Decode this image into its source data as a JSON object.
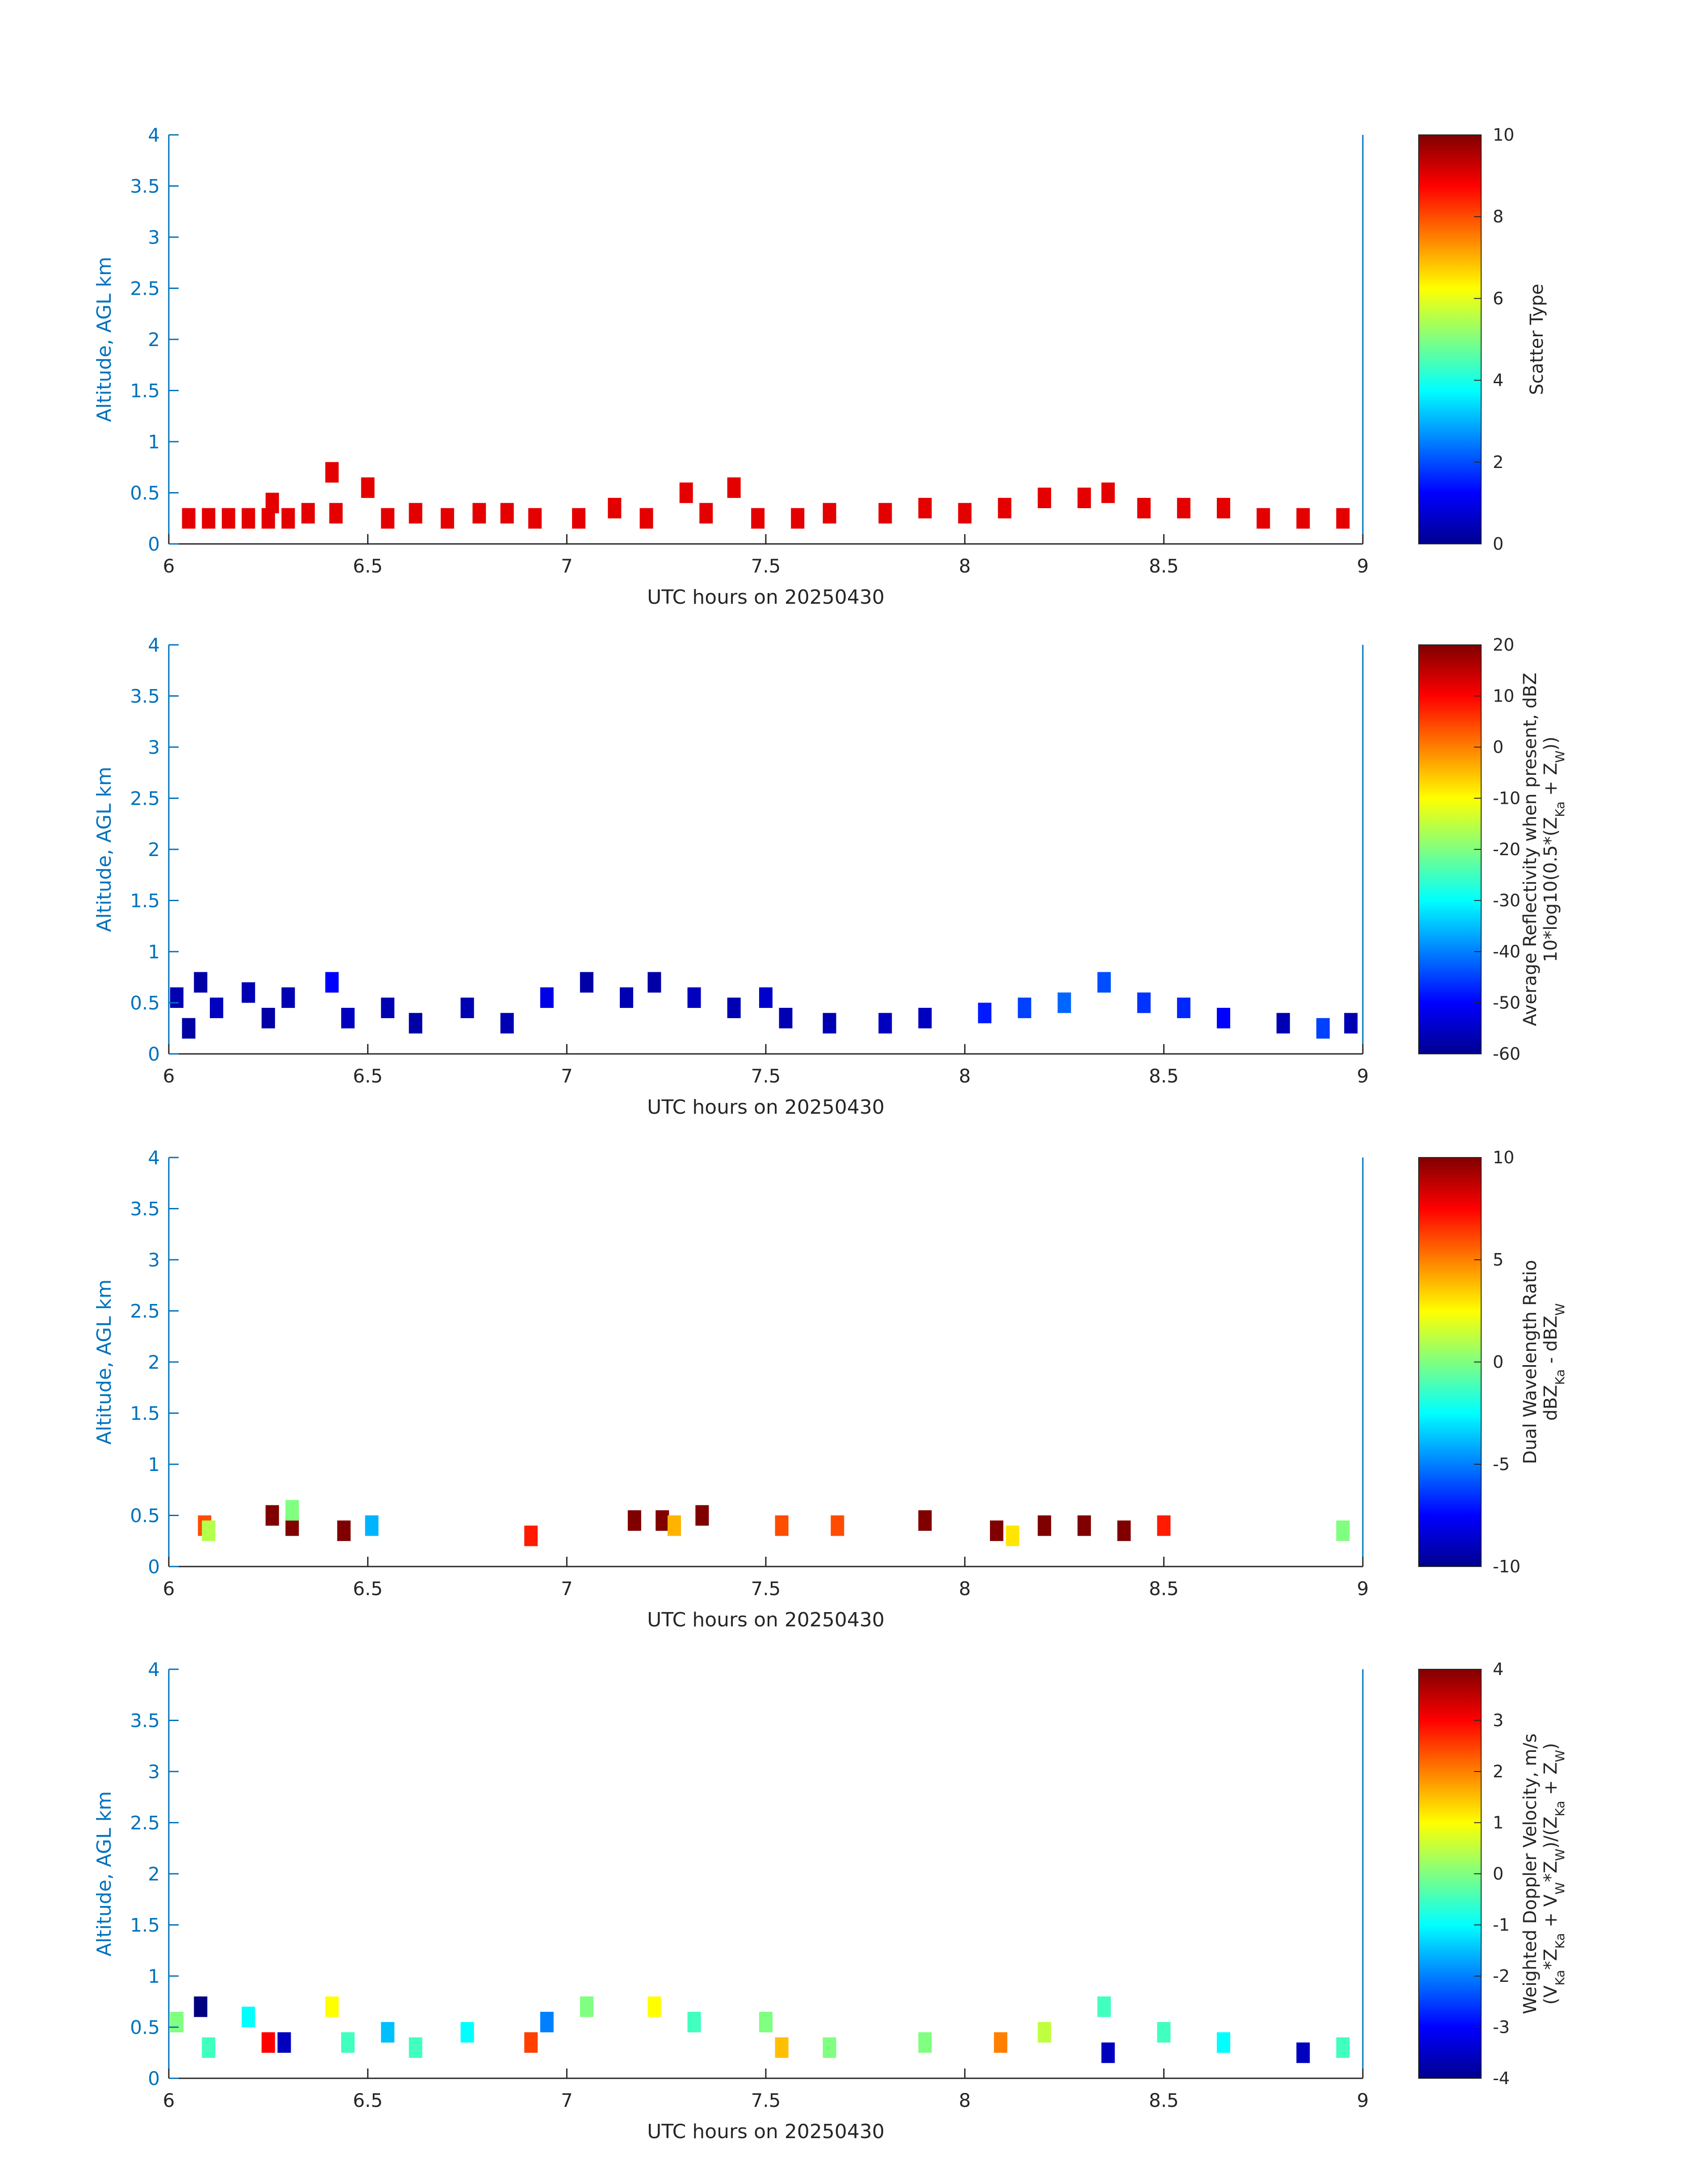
{
  "chart_data": [
    {
      "type": "heatmap",
      "xlabel": "UTC hours on 20250430",
      "ylabel": "Altitude, AGL km",
      "xlim": [
        6,
        9
      ],
      "ylim": [
        0,
        4
      ],
      "xticks": [
        "6",
        "6.5",
        "7",
        "7.5",
        "8",
        "8.5",
        "9"
      ],
      "yticks": [
        "0",
        "0.5",
        "1",
        "1.5",
        "2",
        "2.5",
        "3",
        "3.5",
        "4"
      ],
      "colorbar": {
        "lines": [
          "Scatter Type"
        ],
        "clim": [
          0,
          10
        ],
        "ticks": [
          "0",
          "2",
          "4",
          "6",
          "8",
          "10"
        ]
      },
      "cells": [
        {
          "t": 6.05,
          "h": 0.25,
          "v": 9
        },
        {
          "t": 6.1,
          "h": 0.25,
          "v": 9
        },
        {
          "t": 6.15,
          "h": 0.25,
          "v": 9
        },
        {
          "t": 6.2,
          "h": 0.25,
          "v": 9
        },
        {
          "t": 6.25,
          "h": 0.25,
          "v": 9
        },
        {
          "t": 6.26,
          "h": 0.4,
          "v": 9
        },
        {
          "t": 6.3,
          "h": 0.25,
          "v": 9
        },
        {
          "t": 6.35,
          "h": 0.3,
          "v": 9
        },
        {
          "t": 6.41,
          "h": 0.7,
          "v": 9
        },
        {
          "t": 6.42,
          "h": 0.3,
          "v": 9
        },
        {
          "t": 6.5,
          "h": 0.55,
          "v": 9
        },
        {
          "t": 6.55,
          "h": 0.25,
          "v": 9
        },
        {
          "t": 6.62,
          "h": 0.3,
          "v": 9
        },
        {
          "t": 6.7,
          "h": 0.25,
          "v": 9
        },
        {
          "t": 6.78,
          "h": 0.3,
          "v": 9
        },
        {
          "t": 6.85,
          "h": 0.3,
          "v": 9
        },
        {
          "t": 6.92,
          "h": 0.25,
          "v": 9
        },
        {
          "t": 7.03,
          "h": 0.25,
          "v": 9
        },
        {
          "t": 7.12,
          "h": 0.35,
          "v": 9
        },
        {
          "t": 7.2,
          "h": 0.25,
          "v": 9
        },
        {
          "t": 7.3,
          "h": 0.5,
          "v": 9
        },
        {
          "t": 7.35,
          "h": 0.3,
          "v": 9
        },
        {
          "t": 7.42,
          "h": 0.55,
          "v": 9
        },
        {
          "t": 7.48,
          "h": 0.25,
          "v": 9
        },
        {
          "t": 7.58,
          "h": 0.25,
          "v": 9
        },
        {
          "t": 7.66,
          "h": 0.3,
          "v": 9
        },
        {
          "t": 7.8,
          "h": 0.3,
          "v": 9
        },
        {
          "t": 7.9,
          "h": 0.35,
          "v": 9
        },
        {
          "t": 8.0,
          "h": 0.3,
          "v": 9
        },
        {
          "t": 8.1,
          "h": 0.35,
          "v": 9
        },
        {
          "t": 8.2,
          "h": 0.45,
          "v": 9
        },
        {
          "t": 8.3,
          "h": 0.45,
          "v": 9
        },
        {
          "t": 8.36,
          "h": 0.5,
          "v": 9
        },
        {
          "t": 8.45,
          "h": 0.35,
          "v": 9
        },
        {
          "t": 8.55,
          "h": 0.35,
          "v": 9
        },
        {
          "t": 8.65,
          "h": 0.35,
          "v": 9
        },
        {
          "t": 8.75,
          "h": 0.25,
          "v": 9
        },
        {
          "t": 8.85,
          "h": 0.25,
          "v": 9
        },
        {
          "t": 8.95,
          "h": 0.25,
          "v": 9
        }
      ]
    },
    {
      "type": "heatmap",
      "xlabel": "UTC hours on 20250430",
      "ylabel": "Altitude, AGL km",
      "xlim": [
        6,
        9
      ],
      "ylim": [
        0,
        4
      ],
      "xticks": [
        "6",
        "6.5",
        "7",
        "7.5",
        "8",
        "8.5",
        "9"
      ],
      "yticks": [
        "0",
        "0.5",
        "1",
        "1.5",
        "2",
        "2.5",
        "3",
        "3.5",
        "4"
      ],
      "colorbar": {
        "lines": [
          "Average Reflectivity when present, dBZ",
          "10*log10(0.5*(Z_Ka + Z_W))"
        ],
        "clim": [
          -60,
          20
        ],
        "ticks": [
          "-60",
          "-50",
          "-40",
          "-30",
          "-20",
          "-10",
          "0",
          "10",
          "20"
        ]
      },
      "cells": [
        {
          "t": 6.02,
          "h": 0.55,
          "v": -56
        },
        {
          "t": 6.05,
          "h": 0.25,
          "v": -57
        },
        {
          "t": 6.08,
          "h": 0.7,
          "v": -57
        },
        {
          "t": 6.12,
          "h": 0.45,
          "v": -55
        },
        {
          "t": 6.2,
          "h": 0.6,
          "v": -56
        },
        {
          "t": 6.25,
          "h": 0.35,
          "v": -57
        },
        {
          "t": 6.3,
          "h": 0.55,
          "v": -56
        },
        {
          "t": 6.41,
          "h": 0.7,
          "v": -50
        },
        {
          "t": 6.45,
          "h": 0.35,
          "v": -55
        },
        {
          "t": 6.55,
          "h": 0.45,
          "v": -56
        },
        {
          "t": 6.62,
          "h": 0.3,
          "v": -57
        },
        {
          "t": 6.75,
          "h": 0.45,
          "v": -56
        },
        {
          "t": 6.85,
          "h": 0.3,
          "v": -56
        },
        {
          "t": 6.95,
          "h": 0.55,
          "v": -52
        },
        {
          "t": 7.05,
          "h": 0.7,
          "v": -57
        },
        {
          "t": 7.15,
          "h": 0.55,
          "v": -56
        },
        {
          "t": 7.22,
          "h": 0.7,
          "v": -57
        },
        {
          "t": 7.32,
          "h": 0.55,
          "v": -55
        },
        {
          "t": 7.42,
          "h": 0.45,
          "v": -56
        },
        {
          "t": 7.5,
          "h": 0.55,
          "v": -54
        },
        {
          "t": 7.55,
          "h": 0.35,
          "v": -56
        },
        {
          "t": 7.66,
          "h": 0.3,
          "v": -56
        },
        {
          "t": 7.8,
          "h": 0.3,
          "v": -55
        },
        {
          "t": 7.9,
          "h": 0.35,
          "v": -55
        },
        {
          "t": 8.05,
          "h": 0.4,
          "v": -48
        },
        {
          "t": 8.15,
          "h": 0.45,
          "v": -45
        },
        {
          "t": 8.25,
          "h": 0.5,
          "v": -42
        },
        {
          "t": 8.35,
          "h": 0.7,
          "v": -44
        },
        {
          "t": 8.45,
          "h": 0.5,
          "v": -46
        },
        {
          "t": 8.55,
          "h": 0.45,
          "v": -47
        },
        {
          "t": 8.65,
          "h": 0.35,
          "v": -50
        },
        {
          "t": 8.8,
          "h": 0.3,
          "v": -56
        },
        {
          "t": 8.9,
          "h": 0.25,
          "v": -45
        },
        {
          "t": 8.97,
          "h": 0.3,
          "v": -56
        }
      ]
    },
    {
      "type": "heatmap",
      "xlabel": "UTC hours on 20250430",
      "ylabel": "Altitude, AGL km",
      "xlim": [
        6,
        9
      ],
      "ylim": [
        0,
        4
      ],
      "xticks": [
        "6",
        "6.5",
        "7",
        "7.5",
        "8",
        "8.5",
        "9"
      ],
      "yticks": [
        "0",
        "0.5",
        "1",
        "1.5",
        "2",
        "2.5",
        "3",
        "3.5",
        "4"
      ],
      "colorbar": {
        "lines": [
          "Dual Wavelength Ratio",
          "dBZ_Ka - dBZ_W"
        ],
        "clim": [
          -10,
          10
        ],
        "ticks": [
          "-10",
          "-5",
          "0",
          "5",
          "10"
        ]
      },
      "cells": [
        {
          "t": 6.09,
          "h": 0.4,
          "v": 6
        },
        {
          "t": 6.1,
          "h": 0.35,
          "v": 1
        },
        {
          "t": 6.26,
          "h": 0.5,
          "v": 10
        },
        {
          "t": 6.31,
          "h": 0.4,
          "v": 10
        },
        {
          "t": 6.31,
          "h": 0.55,
          "v": 0
        },
        {
          "t": 6.44,
          "h": 0.35,
          "v": 10
        },
        {
          "t": 6.51,
          "h": 0.4,
          "v": -4
        },
        {
          "t": 6.91,
          "h": 0.3,
          "v": 7
        },
        {
          "t": 7.17,
          "h": 0.45,
          "v": 10
        },
        {
          "t": 7.24,
          "h": 0.45,
          "v": 10
        },
        {
          "t": 7.27,
          "h": 0.4,
          "v": 4
        },
        {
          "t": 7.34,
          "h": 0.5,
          "v": 10
        },
        {
          "t": 7.54,
          "h": 0.4,
          "v": 6
        },
        {
          "t": 7.68,
          "h": 0.4,
          "v": 6
        },
        {
          "t": 7.9,
          "h": 0.45,
          "v": 10
        },
        {
          "t": 8.08,
          "h": 0.35,
          "v": 10
        },
        {
          "t": 8.12,
          "h": 0.3,
          "v": 3
        },
        {
          "t": 8.2,
          "h": 0.4,
          "v": 10
        },
        {
          "t": 8.3,
          "h": 0.4,
          "v": 10
        },
        {
          "t": 8.4,
          "h": 0.35,
          "v": 10
        },
        {
          "t": 8.5,
          "h": 0.4,
          "v": 7
        },
        {
          "t": 8.95,
          "h": 0.35,
          "v": 0
        }
      ]
    },
    {
      "type": "heatmap",
      "xlabel": "UTC hours on 20250430",
      "ylabel": "Altitude, AGL km",
      "xlim": [
        6,
        9
      ],
      "ylim": [
        0,
        4
      ],
      "xticks": [
        "6",
        "6.5",
        "7",
        "7.5",
        "8",
        "8.5",
        "9"
      ],
      "yticks": [
        "0",
        "0.5",
        "1",
        "1.5",
        "2",
        "2.5",
        "3",
        "3.5",
        "4"
      ],
      "colorbar": {
        "lines": [
          "Weighted Doppler Velocity, m/s",
          "(V_Ka*Z_Ka + V_W*Z_W)/(Z_Ka + Z_W)"
        ],
        "clim": [
          -4,
          4
        ],
        "ticks": [
          "-4",
          "-3",
          "-2",
          "-1",
          "0",
          "1",
          "2",
          "3",
          "4"
        ]
      },
      "cells": [
        {
          "t": 6.02,
          "h": 0.55,
          "v": 0
        },
        {
          "t": 6.08,
          "h": 0.7,
          "v": -4
        },
        {
          "t": 6.1,
          "h": 0.3,
          "v": -0.5
        },
        {
          "t": 6.2,
          "h": 0.6,
          "v": -1
        },
        {
          "t": 6.25,
          "h": 0.35,
          "v": 3
        },
        {
          "t": 6.29,
          "h": 0.35,
          "v": -3.5
        },
        {
          "t": 6.41,
          "h": 0.7,
          "v": 1
        },
        {
          "t": 6.45,
          "h": 0.35,
          "v": -0.5
        },
        {
          "t": 6.55,
          "h": 0.45,
          "v": -1.5
        },
        {
          "t": 6.62,
          "h": 0.3,
          "v": -0.5
        },
        {
          "t": 6.75,
          "h": 0.45,
          "v": -1
        },
        {
          "t": 6.91,
          "h": 0.35,
          "v": 2.5
        },
        {
          "t": 6.95,
          "h": 0.55,
          "v": -2
        },
        {
          "t": 7.05,
          "h": 0.7,
          "v": 0
        },
        {
          "t": 7.22,
          "h": 0.7,
          "v": 1
        },
        {
          "t": 7.32,
          "h": 0.55,
          "v": -0.5
        },
        {
          "t": 7.5,
          "h": 0.55,
          "v": 0
        },
        {
          "t": 7.54,
          "h": 0.3,
          "v": 1.5
        },
        {
          "t": 7.66,
          "h": 0.3,
          "v": 0
        },
        {
          "t": 7.9,
          "h": 0.35,
          "v": 0
        },
        {
          "t": 8.09,
          "h": 0.35,
          "v": 2
        },
        {
          "t": 8.2,
          "h": 0.45,
          "v": 0.5
        },
        {
          "t": 8.35,
          "h": 0.7,
          "v": -0.5
        },
        {
          "t": 8.36,
          "h": 0.25,
          "v": -3.5
        },
        {
          "t": 8.5,
          "h": 0.45,
          "v": -0.5
        },
        {
          "t": 8.65,
          "h": 0.35,
          "v": -1
        },
        {
          "t": 8.85,
          "h": 0.25,
          "v": -3.5
        },
        {
          "t": 8.95,
          "h": 0.3,
          "v": -0.5
        }
      ]
    }
  ]
}
